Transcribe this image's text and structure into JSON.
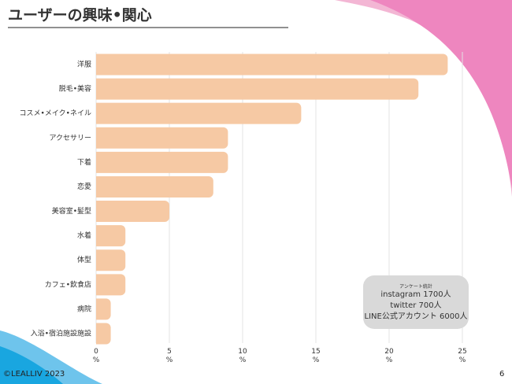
{
  "chart_data": {
    "type": "barh",
    "title": "ユーザーの興味•関心",
    "categories": [
      "洋服",
      "脱毛•美容",
      "コスメ•メイク•ネイル",
      "アクセサリー",
      "下着",
      "恋愛",
      "美容室•髪型",
      "水着",
      "体型",
      "カフェ•飲食店",
      "病院",
      "入浴•宿泊施設施設"
    ],
    "values": [
      24,
      22,
      14,
      9,
      9,
      8,
      5,
      2,
      2,
      2,
      1,
      1
    ],
    "color": "#f6c9a4",
    "xlim": [
      0,
      25
    ],
    "xticks": [
      {
        "value": 0,
        "label": "0\n%"
      },
      {
        "value": 5,
        "label": "5\n%"
      },
      {
        "value": 10,
        "label": "10\n%"
      },
      {
        "value": 15,
        "label": "15\n%"
      },
      {
        "value": 20,
        "label": "20\n%"
      },
      {
        "value": 25,
        "label": "25\n%"
      }
    ],
    "grid": true
  },
  "note": {
    "title": "アンケート統計",
    "lines": [
      "instagram 1700人",
      "twitter 700人",
      "LINE公式アカウント 6000人"
    ]
  },
  "footer": {
    "copyright": "©LEALLIV 2023",
    "page": "6"
  }
}
